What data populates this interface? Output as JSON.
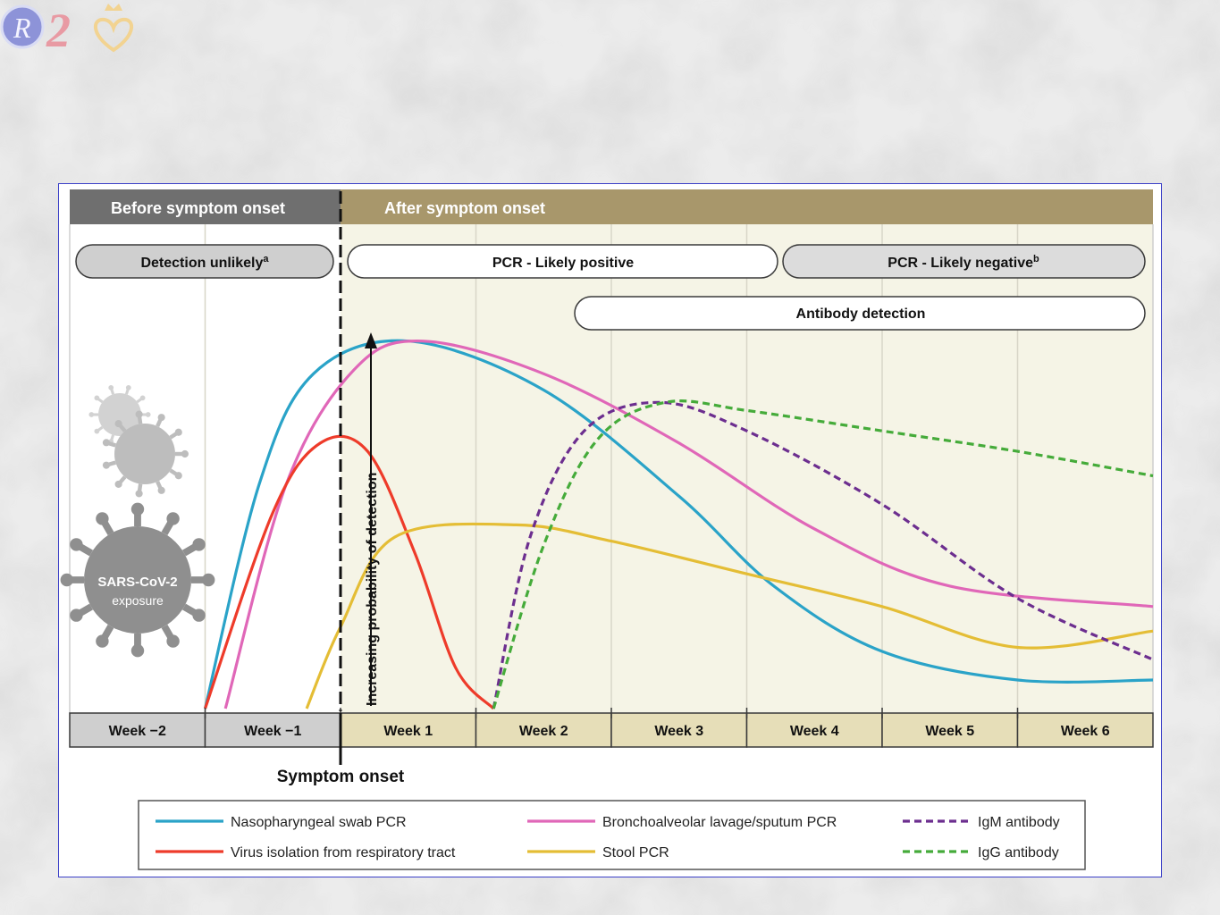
{
  "colors": {
    "before_band": "#6f6f6f",
    "after_band": "#a8976b",
    "plot_after_bg": "#f5f4e6",
    "week_before_bg": "#cfcfcf",
    "week_after_bg": "#e6deb8",
    "nasopharyngeal": "#2aa3c8",
    "bronchoalveolar": "#e067b8",
    "virus_isolation": "#ee3b2a",
    "stool": "#e4bd35",
    "igm": "#6c2e8f",
    "igg": "#45ab3a"
  },
  "header": {
    "before": "Before symptom onset",
    "after": "After symptom onset"
  },
  "pills": {
    "detection_unlikely": "Detection unlikely",
    "detection_unlikely_sup": "a",
    "pcr_positive": "PCR - Likely positive",
    "pcr_negative": "PCR - Likely negative",
    "pcr_negative_sup": "b",
    "antibody": "Antibody detection"
  },
  "y_label": "Increasing probability of detection",
  "virus": {
    "title": "SARS-CoV-2",
    "subtitle": "exposure",
    "icon": "virus-icon"
  },
  "onset_label": "Symptom onset",
  "chart_data": {
    "type": "line",
    "categories": [
      "Week −2",
      "Week −1",
      "Week 1",
      "Week 2",
      "Week 3",
      "Week 4",
      "Week 5",
      "Week 6"
    ],
    "x_range": [
      0,
      8
    ],
    "ylim": [
      0,
      100
    ],
    "symptom_onset_x": 2,
    "ylabel": "Increasing probability of detection",
    "series": [
      {
        "name": "Nasopharyngeal swab PCR",
        "key": "nasopharyngeal",
        "style": "solid",
        "points": [
          [
            1,
            0
          ],
          [
            1.4,
            55
          ],
          [
            1.8,
            82
          ],
          [
            2.5,
            90
          ],
          [
            3.5,
            78
          ],
          [
            4.5,
            52
          ],
          [
            5.2,
            30
          ],
          [
            6,
            14
          ],
          [
            7,
            7
          ],
          [
            8,
            7
          ]
        ]
      },
      {
        "name": "Bronchoalveolar lavage/sputum PCR",
        "key": "bronchoalveolar",
        "style": "solid",
        "points": [
          [
            1.15,
            0
          ],
          [
            1.6,
            55
          ],
          [
            2.1,
            83
          ],
          [
            2.6,
            90
          ],
          [
            3.5,
            82
          ],
          [
            4.5,
            65
          ],
          [
            5.5,
            44
          ],
          [
            6.5,
            30
          ],
          [
            8,
            25
          ]
        ]
      },
      {
        "name": "Virus isolation from respiratory tract",
        "key": "virus_isolation",
        "style": "solid",
        "points": [
          [
            1,
            0
          ],
          [
            1.5,
            48
          ],
          [
            1.85,
            65
          ],
          [
            2.2,
            63
          ],
          [
            2.55,
            38
          ],
          [
            2.85,
            10
          ],
          [
            3.13,
            0
          ]
        ]
      },
      {
        "name": "Stool PCR",
        "key": "stool",
        "style": "solid",
        "points": [
          [
            1.75,
            0
          ],
          [
            2,
            20
          ],
          [
            2.4,
            42
          ],
          [
            3.3,
            45
          ],
          [
            4,
            41
          ],
          [
            5,
            33
          ],
          [
            6,
            25
          ],
          [
            7,
            15
          ],
          [
            8,
            19
          ]
        ]
      },
      {
        "name": "IgM antibody",
        "key": "igm",
        "style": "dashed",
        "points": [
          [
            3.13,
            0
          ],
          [
            3.4,
            42
          ],
          [
            3.8,
            68
          ],
          [
            4.35,
            75
          ],
          [
            5,
            68
          ],
          [
            6,
            50
          ],
          [
            7,
            27
          ],
          [
            8,
            12
          ]
        ]
      },
      {
        "name": "IgG antibody",
        "key": "igg",
        "style": "dashed",
        "points": [
          [
            3.13,
            0
          ],
          [
            3.5,
            40
          ],
          [
            3.9,
            66
          ],
          [
            4.4,
            75
          ],
          [
            5,
            73
          ],
          [
            6,
            68
          ],
          [
            7,
            63
          ],
          [
            8,
            57
          ]
        ]
      }
    ]
  },
  "legend": [
    {
      "name": "Nasopharyngeal swab PCR",
      "key": "nasopharyngeal",
      "style": "solid"
    },
    {
      "name": "Bronchoalveolar lavage/sputum PCR",
      "key": "bronchoalveolar",
      "style": "solid"
    },
    {
      "name": "IgM antibody",
      "key": "igm",
      "style": "dashed"
    },
    {
      "name": "Virus isolation from respiratory tract",
      "key": "virus_isolation",
      "style": "solid"
    },
    {
      "name": "Stool PCR",
      "key": "stool",
      "style": "solid"
    },
    {
      "name": "IgG antibody",
      "key": "igg",
      "style": "dashed"
    }
  ]
}
